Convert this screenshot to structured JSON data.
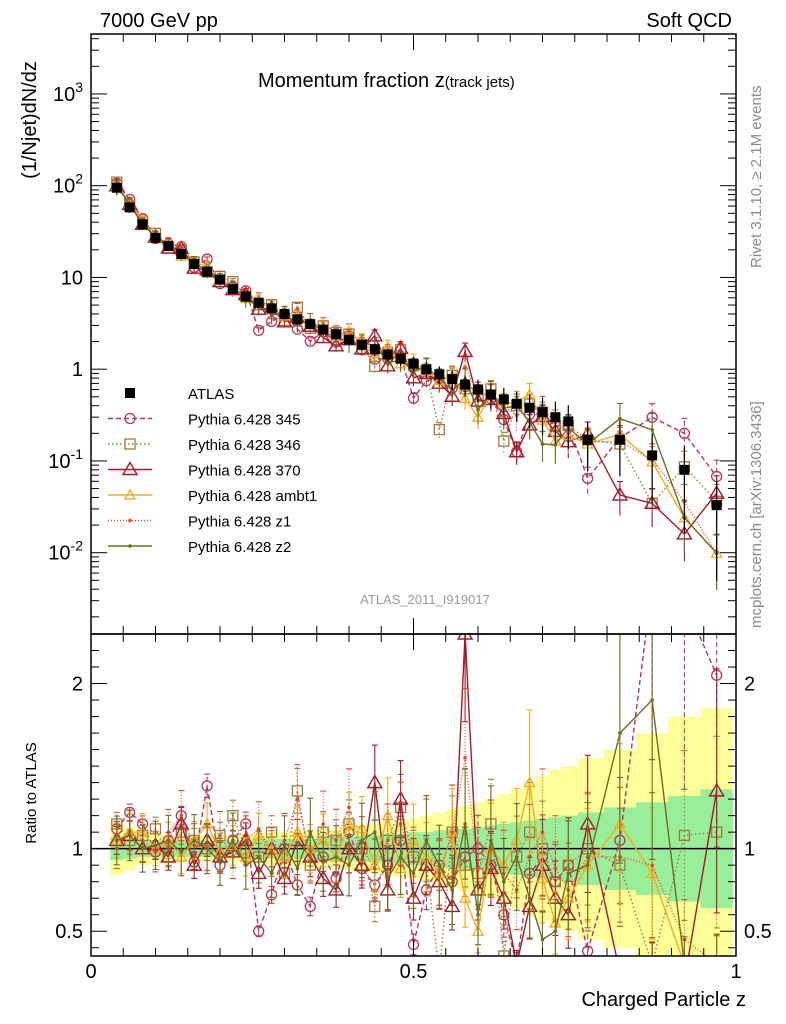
{
  "header": {
    "left": "7000 GeV pp",
    "right": "Soft QCD"
  },
  "side_labels": {
    "rivet": "Rivet 3.1.10, ≥ 2.1M events",
    "mcplots": "mcplots.cern.ch [arXiv:1306.3436]"
  },
  "chart_data": {
    "type": "scatter",
    "title": "Momentum fraction z(track jets)",
    "title_main": "Momentum fraction z",
    "title_sub": "(track jets)",
    "xlabel": "Charged Particle z",
    "ylabel": "(1/Njet)dN/dz",
    "ratio_ylabel": "Ratio to ATLAS",
    "analysis_label": "ATLAS_2011_I919017",
    "xlim": [
      0,
      1
    ],
    "ylim": [
      0.0013,
      4500
    ],
    "yscale": "log",
    "ratio_ylim": [
      0.35,
      2.3
    ],
    "x_ticks": [
      "0",
      "0.5",
      "1"
    ],
    "y_ticks": [
      "10^-2",
      "10^-1",
      "1",
      "10",
      "10^2",
      "10^3"
    ],
    "ratio_ticks": [
      "0.5",
      "1",
      "2"
    ],
    "legend_position": "lower-left",
    "x": [
      0.04,
      0.06,
      0.08,
      0.1,
      0.12,
      0.14,
      0.16,
      0.18,
      0.2,
      0.22,
      0.24,
      0.26,
      0.28,
      0.3,
      0.32,
      0.34,
      0.36,
      0.38,
      0.4,
      0.42,
      0.44,
      0.46,
      0.48,
      0.5,
      0.52,
      0.54,
      0.56,
      0.58,
      0.6,
      0.62,
      0.64,
      0.66,
      0.68,
      0.7,
      0.72,
      0.74,
      0.77,
      0.82,
      0.87,
      0.92,
      0.97
    ],
    "data": {
      "name": "ATLAS",
      "values": [
        95,
        58,
        38,
        27,
        22,
        18,
        14,
        11.5,
        9.5,
        7.5,
        6.2,
        5.3,
        4.6,
        4.0,
        3.5,
        3.1,
        2.7,
        2.4,
        2.1,
        1.85,
        1.65,
        1.45,
        1.3,
        1.15,
        1.0,
        0.88,
        0.78,
        0.68,
        0.6,
        0.53,
        0.47,
        0.42,
        0.38,
        0.34,
        0.3,
        0.27,
        0.17,
        0.17,
        0.115,
        0.08,
        0.033
      ],
      "band_inner": [
        0.07,
        0.06,
        0.05,
        0.05,
        0.05,
        0.05,
        0.05,
        0.05,
        0.05,
        0.05,
        0.05,
        0.06,
        0.06,
        0.06,
        0.06,
        0.06,
        0.07,
        0.07,
        0.07,
        0.08,
        0.08,
        0.09,
        0.09,
        0.1,
        0.1,
        0.11,
        0.12,
        0.12,
        0.13,
        0.14,
        0.15,
        0.16,
        0.17,
        0.18,
        0.19,
        0.2,
        0.22,
        0.25,
        0.28,
        0.32,
        0.36
      ],
      "band_outer": [
        0.16,
        0.13,
        0.1,
        0.09,
        0.08,
        0.08,
        0.08,
        0.08,
        0.08,
        0.08,
        0.09,
        0.09,
        0.1,
        0.1,
        0.11,
        0.11,
        0.12,
        0.12,
        0.13,
        0.14,
        0.15,
        0.16,
        0.17,
        0.18,
        0.2,
        0.22,
        0.24,
        0.26,
        0.28,
        0.3,
        0.33,
        0.36,
        0.4,
        0.44,
        0.48,
        0.5,
        0.55,
        0.6,
        0.7,
        0.8,
        0.85
      ]
    },
    "series": [
      {
        "name": "Pythia 6.428 345",
        "color": "#b5375a",
        "marker": "circle",
        "dash": "5,3",
        "ratio": [
          1.12,
          1.22,
          1.15,
          0.98,
          1.05,
          1.2,
          0.92,
          1.38,
          0.9,
          1.05,
          1.15,
          0.5,
          0.72,
          1.0,
          0.78,
          0.65,
          0.95,
          0.82,
          1.1,
          0.88,
          0.78,
          0.9,
          1.05,
          0.42,
          0.75,
          0.9,
          0.8,
          0.95,
          1.0,
          0.9,
          0.6,
          0.3,
          0.85,
          0.95,
          0.8,
          0.9,
          0.38,
          1.05,
          2.6,
          2.5,
          2.05
        ]
      },
      {
        "name": "Pythia 6.428 346",
        "color": "#a07a3a",
        "marker": "square",
        "dash": "1.5,2.5",
        "ratio": [
          1.15,
          1.05,
          1.08,
          1.12,
          0.95,
          1.1,
          1.05,
          1.0,
          1.08,
          1.2,
          1.0,
          0.95,
          1.1,
          0.85,
          1.35,
          0.9,
          1.1,
          1.05,
          1.15,
          1.0,
          0.65,
          1.05,
          1.25,
          0.95,
          0.9,
          0.25,
          1.1,
          0.9,
          0.85,
          1.15,
          0.35,
          0.95,
          1.1,
          1.0,
          0.8,
          0.9,
          1.0,
          0.9,
          0.3,
          1.08,
          1.1
        ]
      },
      {
        "name": "Pythia 6.428 370",
        "color": "#a5182b",
        "marker": "triangle",
        "dash": "",
        "ratio": [
          1.05,
          1.08,
          1.0,
          1.02,
          0.95,
          1.15,
          0.9,
          1.05,
          0.95,
          0.98,
          1.05,
          0.85,
          1.0,
          0.82,
          1.05,
          0.95,
          0.82,
          0.75,
          1.0,
          0.9,
          1.4,
          0.75,
          1.3,
          0.7,
          0.9,
          0.8,
          0.65,
          2.3,
          0.75,
          0.88,
          0.7,
          0.3,
          0.65,
          0.9,
          0.7,
          0.6,
          1.15,
          0.25,
          0.3,
          0.2,
          1.35
        ]
      },
      {
        "name": "Pythia 6.428 ambt1",
        "color": "#f2ac1c",
        "marker": "triangle-small",
        "dash": "",
        "ratio": [
          1.05,
          1.1,
          1.1,
          1.0,
          1.05,
          0.95,
          1.05,
          1.15,
          0.98,
          1.02,
          0.95,
          1.08,
          0.98,
          0.95,
          1.1,
          1.0,
          1.05,
          0.95,
          1.15,
          1.12,
          0.9,
          1.2,
          0.88,
          1.05,
          0.95,
          0.85,
          1.1,
          0.7,
          0.5,
          1.0,
          0.9,
          1.05,
          1.4,
          0.82,
          0.55,
          0.7,
          0.9,
          1.15,
          0.85,
          0.3,
          0.3
        ]
      },
      {
        "name": "Pythia 6.428 z1",
        "color": "#e34a2a",
        "marker": "dot",
        "dash": "1,2",
        "ratio": [
          1.0,
          1.1,
          1.05,
          0.98,
          1.1,
          1.2,
          1.02,
          1.0,
          1.08,
          0.95,
          1.05,
          1.12,
          0.98,
          1.05,
          1.3,
          0.95,
          1.15,
          1.05,
          1.25,
          1.0,
          0.88,
          1.05,
          1.15,
          0.92,
          1.05,
          0.85,
          1.1,
          1.55,
          0.88,
          1.0,
          0.85,
          0.75,
          0.95,
          1.1,
          0.88,
          0.75,
          0.95,
          0.95,
          0.9,
          0.45,
          0.3
        ]
      },
      {
        "name": "Pythia 6.428 z2",
        "color": "#6b6e1f",
        "marker": "dot",
        "dash": "",
        "ratio": [
          1.05,
          1.08,
          1.0,
          1.02,
          1.05,
          0.98,
          1.05,
          1.0,
          0.92,
          1.05,
          0.9,
          0.95,
          0.85,
          1.02,
          0.88,
          1.1,
          0.92,
          0.95,
          0.9,
          1.05,
          1.1,
          0.82,
          0.95,
          0.85,
          1.05,
          0.9,
          0.75,
          1.15,
          0.6,
          1.05,
          0.8,
          0.95,
          0.7,
          0.45,
          0.5,
          0.85,
          0.9,
          1.7,
          1.9,
          0.3,
          0.3
        ]
      }
    ]
  }
}
